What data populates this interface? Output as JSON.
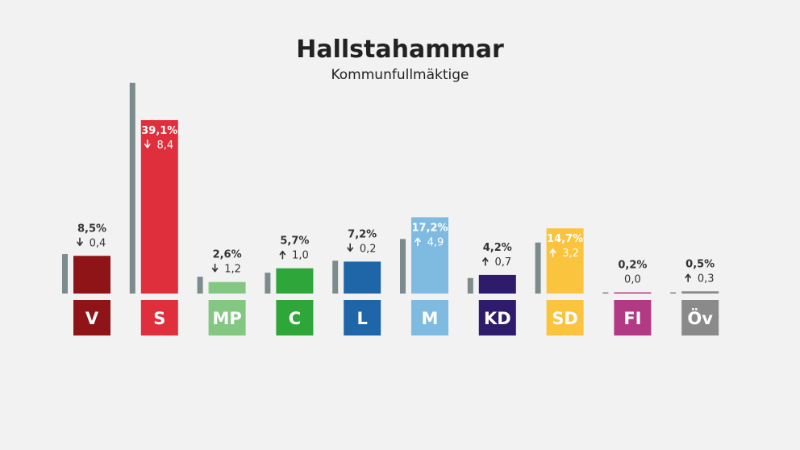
{
  "chart_data": {
    "type": "bar",
    "title": "Hallstahammar",
    "subtitle": "Kommunfullmäktige",
    "ylim": [
      0,
      48
    ],
    "categories": [
      "V",
      "S",
      "MP",
      "C",
      "L",
      "M",
      "KD",
      "SD",
      "FI",
      "Öv"
    ],
    "series": [
      {
        "values": [
          8.5,
          39.1,
          2.6,
          5.7,
          7.2,
          17.2,
          4.2,
          14.7,
          0.2,
          0.5
        ],
        "labels": [
          "8,5%",
          "39,1%",
          "2,6%",
          "5,7%",
          "7,2%",
          "17,2%",
          "4,2%",
          "14,7%",
          "0,2%",
          "0,5%"
        ]
      },
      {
        "values": [
          8.9,
          47.5,
          3.8,
          4.7,
          7.4,
          12.3,
          3.5,
          11.5,
          0.2,
          0.2
        ]
      }
    ],
    "changes": {
      "values": [
        -0.4,
        -8.4,
        -1.2,
        1.0,
        -0.2,
        4.9,
        0.7,
        3.2,
        0.0,
        0.3
      ],
      "labels": [
        "0,4",
        "8,4",
        "1,2",
        "1,0",
        "0,2",
        "4,9",
        "0,7",
        "3,2",
        "0,0",
        "0,3"
      ],
      "direction": [
        "down",
        "down",
        "down",
        "up",
        "down",
        "up",
        "up",
        "up",
        "none",
        "up"
      ]
    },
    "colors": [
      "#8e1418",
      "#e02f3c",
      "#83c783",
      "#2fa63a",
      "#1f66a8",
      "#7fbbe1",
      "#2f1b6b",
      "#fbc43f",
      "#b23a84",
      "#8a8a8a"
    ],
    "previous_color": "#7c8b8c",
    "label_inside": [
      false,
      true,
      false,
      false,
      false,
      true,
      false,
      true,
      false,
      false
    ],
    "label_color_inside": [
      "#ffffff",
      "#ffffff",
      "#ffffff",
      "#ffffff",
      "#ffffff",
      "#ffffff",
      "#ffffff",
      "#ffffff",
      "#ffffff",
      "#ffffff"
    ],
    "label_color_outside": "#333333"
  }
}
